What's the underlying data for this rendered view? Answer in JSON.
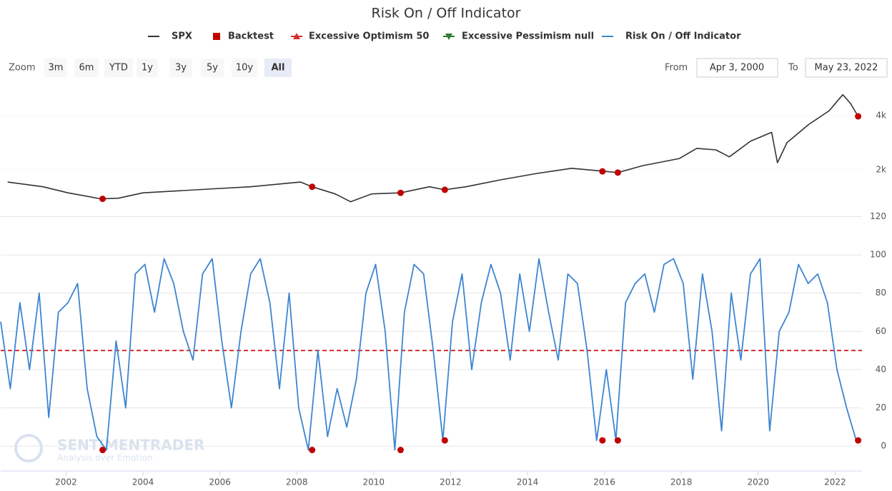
{
  "chart_data": [
    {
      "type": "line",
      "title": "Risk On / Off Indicator",
      "log_scale": true,
      "xlim": [
        2000.3,
        2022.7
      ],
      "ylim": [
        1018,
        5600
      ],
      "yticks": [
        {
          "value": 2000,
          "label": "2k"
        },
        {
          "value": 4000,
          "label": "4k"
        }
      ],
      "grid": true,
      "series": [
        {
          "name": "SPX",
          "color": "#333333",
          "x": [
            2000.48,
            2001.4,
            2002.05,
            2002.9,
            2003.35,
            2004.0,
            2004.95,
            2005.85,
            2006.8,
            2007.7,
            2008.1,
            2008.4,
            2009.0,
            2009.4,
            2009.95,
            2010.7,
            2011.45,
            2011.85,
            2012.4,
            2013.3,
            2014.25,
            2015.15,
            2016.0,
            2016.35,
            2017.0,
            2017.95,
            2018.4,
            2018.9,
            2019.25,
            2019.8,
            2020.35,
            2020.5,
            2020.75,
            2021.3,
            2021.85,
            2022.2,
            2022.4,
            2022.6
          ],
          "values": [
            1710,
            1610,
            1490,
            1380,
            1390,
            1490,
            1530,
            1570,
            1610,
            1680,
            1710,
            1610,
            1470,
            1330,
            1470,
            1490,
            1610,
            1550,
            1610,
            1760,
            1910,
            2040,
            1960,
            1930,
            2110,
            2310,
            2630,
            2580,
            2360,
            2880,
            3230,
            2190,
            2830,
            3550,
            4260,
            5220,
            4670,
            3960
          ]
        },
        {
          "name": "Backtest",
          "color": "#c00000",
          "marker": "dot",
          "x": [
            2002.95,
            2008.4,
            2010.7,
            2011.85,
            2015.95,
            2016.35,
            2022.6
          ],
          "values": [
            1380,
            1610,
            1490,
            1550,
            1960,
            1930,
            3960
          ]
        }
      ]
    },
    {
      "type": "line",
      "xlim": [
        2000.3,
        2022.7
      ],
      "ylim": [
        -13,
        121.3
      ],
      "xticks": [
        2002,
        2004,
        2006,
        2008,
        2010,
        2012,
        2014,
        2016,
        2018,
        2020,
        2022
      ],
      "yticks": [
        0,
        20,
        40,
        60,
        80,
        100,
        120
      ],
      "grid": true,
      "series": [
        {
          "name": "Excessive Optimism 50",
          "color": "#d32f2f",
          "marker": "triangle",
          "reference": 50
        },
        {
          "name": "Excessive Pessimism null",
          "color": "#2e7d32",
          "marker": "triangle-down"
        },
        {
          "name": "Risk On / Off Indicator",
          "color": "#3d85d1",
          "x": [
            2000.3,
            2000.55,
            2000.8,
            2001.05,
            2001.3,
            2001.55,
            2001.8,
            2002.05,
            2002.3,
            2002.55,
            2002.8,
            2003.05,
            2003.3,
            2003.55,
            2003.8,
            2004.05,
            2004.3,
            2004.55,
            2004.8,
            2005.05,
            2005.3,
            2005.55,
            2005.8,
            2006.05,
            2006.3,
            2006.55,
            2006.8,
            2007.05,
            2007.3,
            2007.55,
            2007.8,
            2008.05,
            2008.3,
            2008.55,
            2008.8,
            2009.05,
            2009.3,
            2009.55,
            2009.8,
            2010.05,
            2010.3,
            2010.55,
            2010.8,
            2011.05,
            2011.3,
            2011.55,
            2011.8,
            2012.05,
            2012.3,
            2012.55,
            2012.8,
            2013.05,
            2013.3,
            2013.55,
            2013.8,
            2014.05,
            2014.3,
            2014.55,
            2014.8,
            2015.05,
            2015.3,
            2015.55,
            2015.8,
            2016.05,
            2016.3,
            2016.55,
            2016.8,
            2017.05,
            2017.3,
            2017.55,
            2017.8,
            2018.05,
            2018.3,
            2018.55,
            2018.8,
            2019.05,
            2019.3,
            2019.55,
            2019.8,
            2020.05,
            2020.3,
            2020.55,
            2020.8,
            2021.05,
            2021.3,
            2021.55,
            2021.8,
            2022.05,
            2022.3,
            2022.55
          ],
          "values": [
            65,
            30,
            75,
            40,
            80,
            15,
            70,
            75,
            85,
            30,
            5,
            -2,
            55,
            20,
            90,
            95,
            70,
            98,
            85,
            60,
            45,
            90,
            98,
            55,
            20,
            60,
            90,
            98,
            75,
            30,
            80,
            20,
            -2,
            50,
            5,
            30,
            10,
            35,
            80,
            95,
            60,
            -2,
            70,
            95,
            90,
            50,
            3,
            65,
            90,
            40,
            75,
            95,
            80,
            45,
            90,
            60,
            98,
            70,
            45,
            90,
            85,
            50,
            3,
            40,
            3,
            75,
            85,
            90,
            70,
            95,
            98,
            85,
            35,
            90,
            60,
            8,
            80,
            45,
            90,
            98,
            8,
            60,
            70,
            95,
            85,
            90,
            75,
            40,
            20,
            3
          ]
        },
        {
          "color": "#c00000",
          "marker": "dot",
          "x": [
            2002.95,
            2008.4,
            2010.7,
            2011.85,
            2015.95,
            2016.35,
            2022.6
          ],
          "values": [
            -2,
            -2,
            -2,
            3,
            3,
            3,
            3
          ]
        }
      ]
    }
  ],
  "ui": {
    "zoom_label": "Zoom",
    "zoom_buttons": [
      "3m",
      "6m",
      "YTD",
      "1y",
      "3y",
      "5y",
      "10y",
      "All"
    ],
    "active_button": "All",
    "from_label": "From",
    "from_date": "Apr 3, 2000",
    "to_label": "To",
    "to_date": "May 23, 2022",
    "watermark": "SENTIMENTRADER",
    "watermark_sub": "Analysis over Emotion"
  }
}
